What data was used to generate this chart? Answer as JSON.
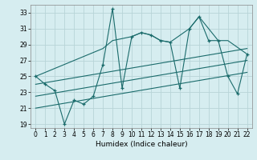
{
  "xlabel": "Humidex (Indice chaleur)",
  "bg_color": "#d6edf0",
  "grid_color": "#b8d4d8",
  "line_color": "#1a6b6b",
  "xlim": [
    -0.5,
    22.5
  ],
  "ylim": [
    18.5,
    34.0
  ],
  "xticks": [
    0,
    1,
    2,
    3,
    4,
    5,
    6,
    7,
    8,
    9,
    10,
    11,
    12,
    13,
    14,
    15,
    16,
    17,
    18,
    19,
    20,
    21,
    22
  ],
  "yticks": [
    19,
    21,
    23,
    25,
    27,
    29,
    31,
    33
  ],
  "main_x": [
    0,
    1,
    2,
    3,
    4,
    5,
    6,
    7,
    8,
    9,
    10,
    11,
    12,
    13,
    14,
    15,
    16,
    17,
    18,
    19,
    20,
    21,
    22
  ],
  "main_y": [
    25.0,
    24.0,
    23.2,
    19.0,
    22.0,
    21.5,
    22.5,
    26.5,
    33.5,
    23.5,
    30.0,
    30.5,
    30.2,
    29.5,
    29.3,
    23.5,
    31.0,
    32.5,
    29.5,
    29.5,
    25.0,
    22.8,
    27.8
  ],
  "upper_env_x": [
    0,
    7,
    8,
    10,
    11,
    12,
    13,
    14,
    16,
    17,
    19,
    20,
    22
  ],
  "upper_env_y": [
    25.0,
    28.5,
    29.5,
    30.0,
    30.5,
    30.2,
    29.5,
    29.3,
    31.0,
    32.5,
    29.5,
    29.5,
    27.8
  ],
  "trend1_x": [
    0,
    22
  ],
  "trend1_y": [
    24.0,
    28.5
  ],
  "trend2_x": [
    0,
    22
  ],
  "trend2_y": [
    22.5,
    27.0
  ],
  "trend3_x": [
    0,
    22
  ],
  "trend3_y": [
    21.0,
    25.5
  ]
}
